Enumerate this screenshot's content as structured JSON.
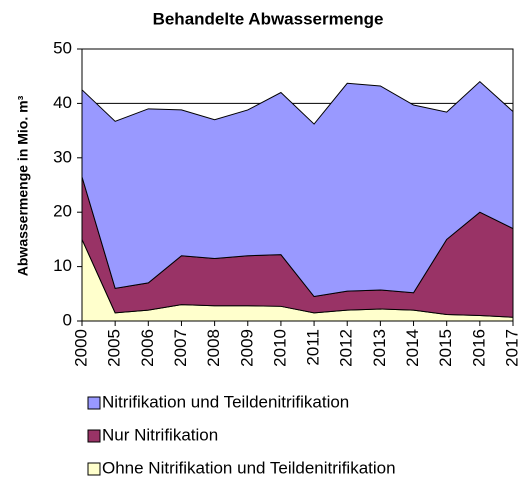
{
  "chart_data": {
    "type": "stacked_area",
    "title": "Behandelte Abwassermenge",
    "y_label": "Abwassermenge in Mio. m³",
    "categories": [
      "2000",
      "2005",
      "2006",
      "2007",
      "2008",
      "2009",
      "2010",
      "2011",
      "2012",
      "2013",
      "2014",
      "2015",
      "2016",
      "2017"
    ],
    "series": [
      {
        "name": "Nitrifikation und Teildenitrifikation",
        "color": "#9999ff",
        "values": [
          16,
          30.7,
          32,
          26.8,
          25.5,
          26.8,
          29.8,
          31.7,
          38.2,
          37.5,
          34.5,
          23.4,
          24,
          21.5
        ]
      },
      {
        "name": "Nur Nitrifikation",
        "color": "#993366",
        "values": [
          11.5,
          4.5,
          5,
          9,
          8.7,
          9.2,
          9.5,
          3,
          3.5,
          3.5,
          3.2,
          13.8,
          19,
          16.3
        ]
      },
      {
        "name": "Ohne Nitrifikation und Teildenitrifikation",
        "color": "#ffffcc",
        "values": [
          15,
          1.5,
          2,
          3,
          2.8,
          2.8,
          2.7,
          1.5,
          2,
          2.2,
          2,
          1.2,
          1,
          0.7
        ]
      }
    ],
    "ylim": [
      0,
      50
    ],
    "yticks": [
      0,
      10,
      20,
      30,
      40,
      50
    ],
    "grid": true
  }
}
